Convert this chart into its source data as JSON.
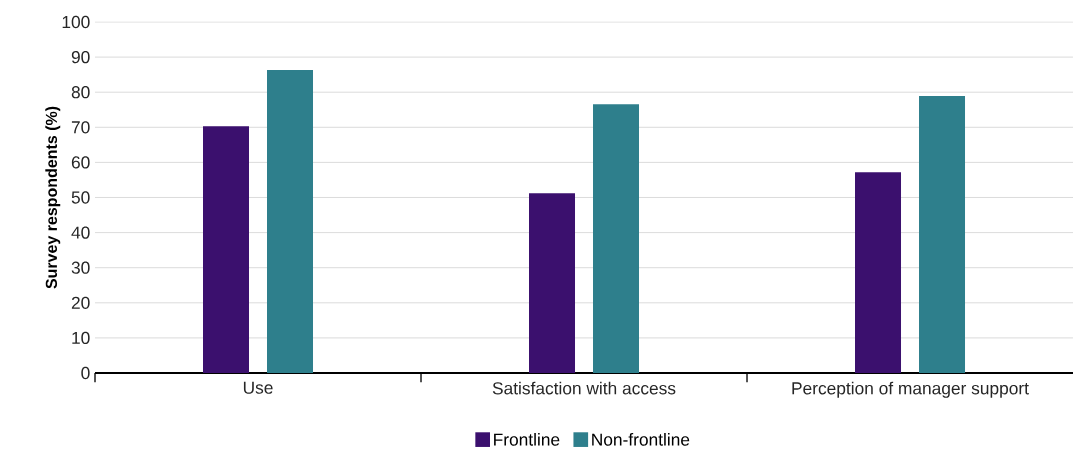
{
  "chart_data": {
    "type": "bar",
    "ylabel": "Survey respondents (%)",
    "categories": [
      "Use",
      "Satisfaction with access",
      "Perception of manager support"
    ],
    "series": [
      {
        "name": "Frontline",
        "color": "#3b106e",
        "values": [
          70.3,
          51.2,
          57.2
        ]
      },
      {
        "name": "Non-frontline",
        "color": "#2e7f8c",
        "values": [
          86.3,
          76.6,
          78.9
        ]
      }
    ],
    "ylim": [
      0,
      100
    ],
    "yticks": [
      0,
      10,
      20,
      30,
      40,
      50,
      60,
      70,
      80,
      90,
      100
    ],
    "grid": "y",
    "legend": "bottom"
  }
}
